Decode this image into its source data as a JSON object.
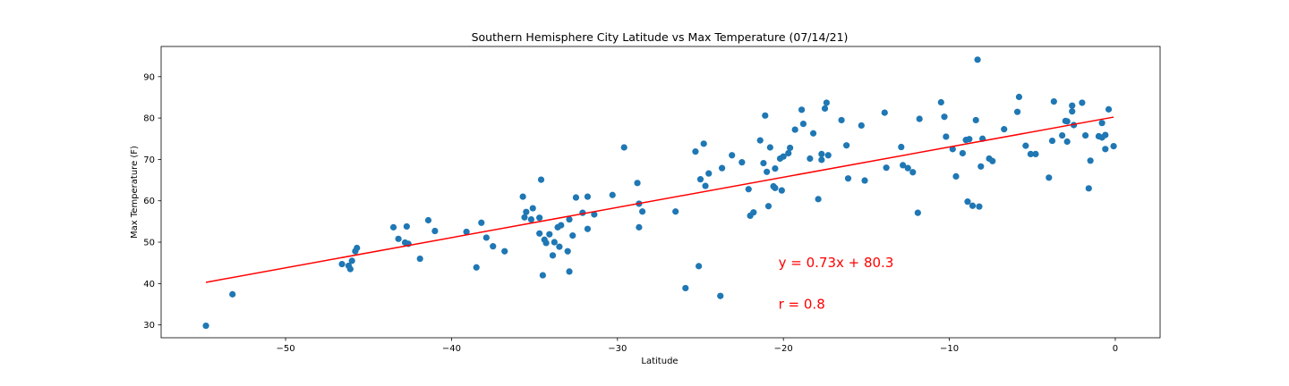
{
  "chart_data": {
    "type": "scatter",
    "title": "Southern Hemisphere City Latitude vs Max Temperature (07/14/21)",
    "xlabel": "Latitude",
    "ylabel": "Max Temperature (F)",
    "xlim": [
      -57.5,
      2.7
    ],
    "ylim": [
      26.9,
      97.3
    ],
    "xticks": [
      -50,
      -40,
      -30,
      -20,
      -10,
      0
    ],
    "yticks": [
      30,
      40,
      50,
      60,
      70,
      80,
      90
    ],
    "grid": false,
    "point_color": "#1f77b4",
    "line_color": "#ff0000",
    "annotations": [
      {
        "text": "y = 0.73x + 80.3",
        "x": -20.3,
        "y": 45
      },
      {
        "text": "r = 0.8",
        "x": -20.3,
        "y": 35
      }
    ],
    "regression": {
      "slope": 0.73,
      "intercept": 80.3,
      "x_range": [
        -54.8,
        -0.1
      ]
    },
    "points": [
      {
        "x": -54.8,
        "y": 29.8
      },
      {
        "x": -53.2,
        "y": 37.4
      },
      {
        "x": -46.6,
        "y": 44.7
      },
      {
        "x": -46.2,
        "y": 44.3
      },
      {
        "x": -46.1,
        "y": 43.5
      },
      {
        "x": -46.0,
        "y": 45.5
      },
      {
        "x": -45.8,
        "y": 47.8
      },
      {
        "x": -45.7,
        "y": 48.6
      },
      {
        "x": -43.5,
        "y": 53.6
      },
      {
        "x": -43.2,
        "y": 50.8
      },
      {
        "x": -42.8,
        "y": 49.9
      },
      {
        "x": -42.7,
        "y": 53.8
      },
      {
        "x": -42.6,
        "y": 49.6
      },
      {
        "x": -41.9,
        "y": 46.0
      },
      {
        "x": -41.4,
        "y": 55.3
      },
      {
        "x": -41.0,
        "y": 52.7
      },
      {
        "x": -39.1,
        "y": 52.5
      },
      {
        "x": -38.5,
        "y": 43.9
      },
      {
        "x": -38.2,
        "y": 54.7
      },
      {
        "x": -37.9,
        "y": 51.1
      },
      {
        "x": -37.5,
        "y": 49.0
      },
      {
        "x": -36.8,
        "y": 47.8
      },
      {
        "x": -35.7,
        "y": 61.0
      },
      {
        "x": -35.6,
        "y": 56.0
      },
      {
        "x": -35.5,
        "y": 57.3
      },
      {
        "x": -35.2,
        "y": 55.5
      },
      {
        "x": -35.1,
        "y": 58.2
      },
      {
        "x": -34.7,
        "y": 55.9
      },
      {
        "x": -34.7,
        "y": 52.1
      },
      {
        "x": -34.6,
        "y": 65.1
      },
      {
        "x": -34.5,
        "y": 42.0
      },
      {
        "x": -34.4,
        "y": 50.6
      },
      {
        "x": -34.3,
        "y": 49.8
      },
      {
        "x": -34.1,
        "y": 51.9
      },
      {
        "x": -33.9,
        "y": 46.8
      },
      {
        "x": -33.8,
        "y": 50.0
      },
      {
        "x": -33.6,
        "y": 53.6
      },
      {
        "x": -33.5,
        "y": 48.9
      },
      {
        "x": -33.4,
        "y": 54.1
      },
      {
        "x": -33.0,
        "y": 47.8
      },
      {
        "x": -32.9,
        "y": 42.9
      },
      {
        "x": -32.9,
        "y": 55.5
      },
      {
        "x": -32.7,
        "y": 51.6
      },
      {
        "x": -32.5,
        "y": 60.8
      },
      {
        "x": -32.1,
        "y": 57.1
      },
      {
        "x": -31.8,
        "y": 61.0
      },
      {
        "x": -31.8,
        "y": 53.2
      },
      {
        "x": -31.4,
        "y": 56.7
      },
      {
        "x": -30.3,
        "y": 61.4
      },
      {
        "x": -29.6,
        "y": 72.9
      },
      {
        "x": -28.8,
        "y": 64.3
      },
      {
        "x": -28.7,
        "y": 59.3
      },
      {
        "x": -28.7,
        "y": 53.6
      },
      {
        "x": -28.5,
        "y": 57.4
      },
      {
        "x": -26.5,
        "y": 57.4
      },
      {
        "x": -25.9,
        "y": 38.9
      },
      {
        "x": -25.3,
        "y": 71.9
      },
      {
        "x": -25.1,
        "y": 44.2
      },
      {
        "x": -25.0,
        "y": 65.2
      },
      {
        "x": -24.8,
        "y": 73.8
      },
      {
        "x": -24.7,
        "y": 63.6
      },
      {
        "x": -24.5,
        "y": 66.6
      },
      {
        "x": -23.8,
        "y": 37.0
      },
      {
        "x": -23.7,
        "y": 67.9
      },
      {
        "x": -23.1,
        "y": 71.0
      },
      {
        "x": -22.5,
        "y": 69.3
      },
      {
        "x": -22.1,
        "y": 62.8
      },
      {
        "x": -22.0,
        "y": 56.4
      },
      {
        "x": -21.8,
        "y": 57.2
      },
      {
        "x": -21.4,
        "y": 74.6
      },
      {
        "x": -21.2,
        "y": 69.1
      },
      {
        "x": -21.1,
        "y": 80.6
      },
      {
        "x": -21.0,
        "y": 67.0
      },
      {
        "x": -20.9,
        "y": 58.7
      },
      {
        "x": -20.8,
        "y": 72.9
      },
      {
        "x": -20.6,
        "y": 63.5
      },
      {
        "x": -20.5,
        "y": 67.8
      },
      {
        "x": -20.5,
        "y": 63.1
      },
      {
        "x": -20.2,
        "y": 70.2
      },
      {
        "x": -20.1,
        "y": 62.5
      },
      {
        "x": -20.0,
        "y": 70.7
      },
      {
        "x": -19.7,
        "y": 71.5
      },
      {
        "x": -19.6,
        "y": 72.8
      },
      {
        "x": -19.3,
        "y": 77.2
      },
      {
        "x": -18.9,
        "y": 82.0
      },
      {
        "x": -18.8,
        "y": 78.6
      },
      {
        "x": -18.4,
        "y": 70.2
      },
      {
        "x": -18.2,
        "y": 76.3
      },
      {
        "x": -17.9,
        "y": 60.4
      },
      {
        "x": -17.7,
        "y": 71.3
      },
      {
        "x": -17.7,
        "y": 69.9
      },
      {
        "x": -17.5,
        "y": 82.3
      },
      {
        "x": -17.4,
        "y": 83.7
      },
      {
        "x": -17.3,
        "y": 71.0
      },
      {
        "x": -16.5,
        "y": 79.5
      },
      {
        "x": -16.2,
        "y": 73.4
      },
      {
        "x": -16.1,
        "y": 65.4
      },
      {
        "x": -15.3,
        "y": 78.2
      },
      {
        "x": -15.1,
        "y": 64.9
      },
      {
        "x": -13.9,
        "y": 81.3
      },
      {
        "x": -13.8,
        "y": 68.0
      },
      {
        "x": -12.9,
        "y": 73.0
      },
      {
        "x": -12.8,
        "y": 68.6
      },
      {
        "x": -12.5,
        "y": 67.9
      },
      {
        "x": -12.2,
        "y": 66.9
      },
      {
        "x": -11.9,
        "y": 57.1
      },
      {
        "x": -11.8,
        "y": 79.8
      },
      {
        "x": -10.5,
        "y": 83.8
      },
      {
        "x": -10.3,
        "y": 80.3
      },
      {
        "x": -10.2,
        "y": 75.5
      },
      {
        "x": -9.8,
        "y": 72.5
      },
      {
        "x": -9.6,
        "y": 65.9
      },
      {
        "x": -9.2,
        "y": 71.5
      },
      {
        "x": -9.0,
        "y": 74.7
      },
      {
        "x": -8.9,
        "y": 59.8
      },
      {
        "x": -8.8,
        "y": 74.9
      },
      {
        "x": -8.6,
        "y": 58.8
      },
      {
        "x": -8.4,
        "y": 79.5
      },
      {
        "x": -8.3,
        "y": 94.1
      },
      {
        "x": -8.2,
        "y": 58.6
      },
      {
        "x": -8.1,
        "y": 68.3
      },
      {
        "x": -8.0,
        "y": 75.0
      },
      {
        "x": -7.6,
        "y": 70.2
      },
      {
        "x": -7.4,
        "y": 69.6
      },
      {
        "x": -6.7,
        "y": 77.3
      },
      {
        "x": -5.9,
        "y": 81.5
      },
      {
        "x": -5.8,
        "y": 85.1
      },
      {
        "x": -5.4,
        "y": 73.3
      },
      {
        "x": -5.1,
        "y": 71.3
      },
      {
        "x": -4.8,
        "y": 71.3
      },
      {
        "x": -4.0,
        "y": 65.6
      },
      {
        "x": -3.8,
        "y": 74.5
      },
      {
        "x": -3.7,
        "y": 84.0
      },
      {
        "x": -3.2,
        "y": 75.8
      },
      {
        "x": -3.0,
        "y": 79.3
      },
      {
        "x": -2.9,
        "y": 74.3
      },
      {
        "x": -2.9,
        "y": 79.2
      },
      {
        "x": -2.6,
        "y": 83.0
      },
      {
        "x": -2.6,
        "y": 81.6
      },
      {
        "x": -2.5,
        "y": 78.3
      },
      {
        "x": -2.0,
        "y": 83.7
      },
      {
        "x": -1.8,
        "y": 75.8
      },
      {
        "x": -1.6,
        "y": 63.0
      },
      {
        "x": -1.5,
        "y": 69.7
      },
      {
        "x": -1.0,
        "y": 75.6
      },
      {
        "x": -0.8,
        "y": 78.8
      },
      {
        "x": -0.8,
        "y": 75.3
      },
      {
        "x": -0.6,
        "y": 75.9
      },
      {
        "x": -0.6,
        "y": 72.5
      },
      {
        "x": -0.4,
        "y": 82.1
      },
      {
        "x": -0.1,
        "y": 73.2
      }
    ]
  }
}
